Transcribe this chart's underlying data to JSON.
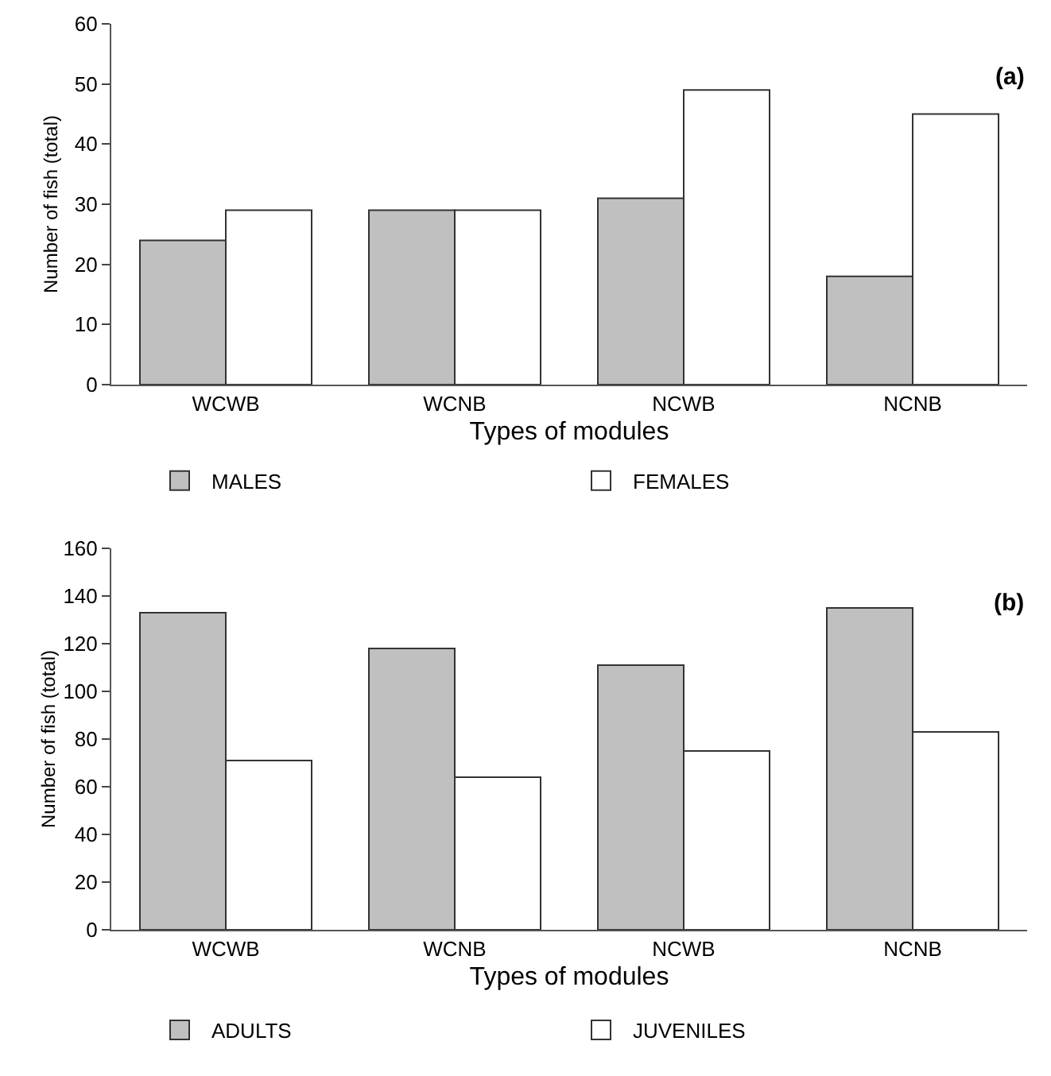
{
  "chart_data": [
    {
      "type": "bar",
      "categories": [
        "WCWB",
        "WCNB",
        "NCWB",
        "NCNB"
      ],
      "xlabel": "Types of modules",
      "ylabel": "Number of fish (total)",
      "annotations": [
        "(a)"
      ],
      "series": [
        {
          "name": "MALES",
          "color": "#c0c0c0",
          "values": [
            24,
            29,
            31,
            18
          ]
        },
        {
          "name": "FEMALES",
          "color": "#ffffff",
          "values": [
            29,
            29,
            49,
            45
          ]
        }
      ],
      "ylim": [
        0,
        60
      ],
      "yticks": [
        0,
        10,
        20,
        30,
        40,
        50,
        60
      ],
      "legend": "bottom",
      "grid": false
    },
    {
      "type": "bar",
      "categories": [
        "WCWB",
        "WCNB",
        "NCWB",
        "NCNB"
      ],
      "xlabel": "Types of modules",
      "ylabel": "Number of fish (total)",
      "annotations": [
        "(b)"
      ],
      "series": [
        {
          "name": "ADULTS",
          "color": "#c0c0c0",
          "values": [
            133,
            118,
            111,
            135
          ]
        },
        {
          "name": "JUVENILES",
          "color": "#ffffff",
          "values": [
            71,
            64,
            75,
            83
          ]
        }
      ],
      "ylim": [
        0,
        160
      ],
      "yticks": [
        0,
        20,
        40,
        60,
        80,
        100,
        120,
        140,
        160
      ],
      "legend": "bottom",
      "grid": false
    }
  ]
}
